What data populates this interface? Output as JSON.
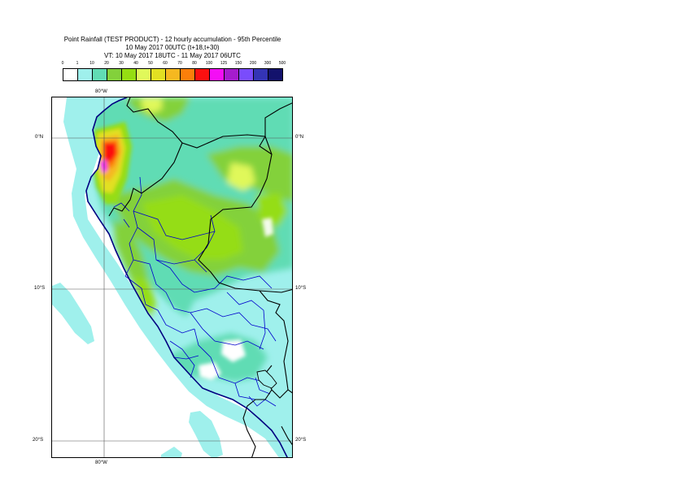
{
  "title": {
    "line1": "Point Rainfall (TEST PRODUCT) - 12 hourly accumulation - 95th Percentile",
    "line2": "10 May 2017 00UTC (t+18,t+30)",
    "line3": "VT: 10 May 2017 18UTC - 11 May 2017 06UTC"
  },
  "legend": {
    "levels": [
      "0",
      "1",
      "10",
      "20",
      "30",
      "40",
      "50",
      "60",
      "70",
      "80",
      "100",
      "125",
      "150",
      "200",
      "300",
      "500"
    ],
    "colors": [
      "#ffffff",
      "#9ff0ec",
      "#61dcb4",
      "#83d13b",
      "#95dd12",
      "#e0f85a",
      "#e2e022",
      "#f5b820",
      "#fb7f0a",
      "#fc1010",
      "#f40ef5",
      "#a51cce",
      "#7a4cfc",
      "#3434b6",
      "#13126c"
    ]
  },
  "map": {
    "lon_labels": [
      "80°W",
      "80°W"
    ],
    "lat_labels": [
      {
        "text": "0°N"
      },
      {
        "text": "10°S"
      },
      {
        "text": "20°S"
      }
    ],
    "ocean_color": "#ffffff",
    "land_base_color": "#9ff0ec",
    "coast_color": "#000080",
    "border_color": "#000000",
    "region_color": "#0000cc"
  }
}
